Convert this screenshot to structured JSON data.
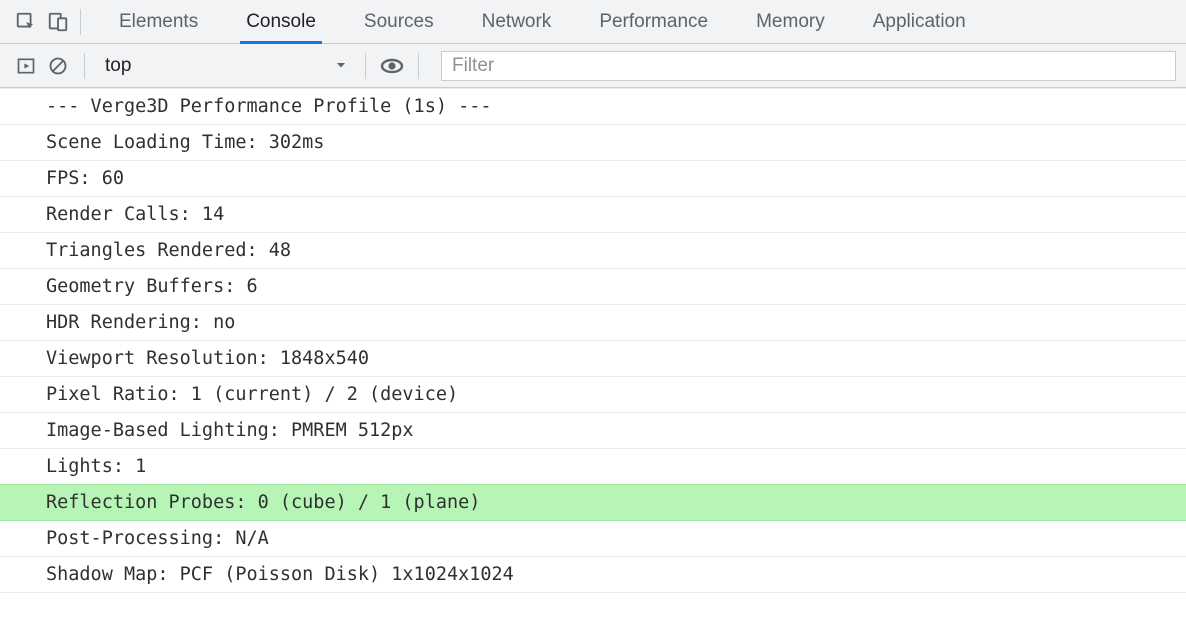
{
  "colors": {
    "tab_bg": "#f1f3f4",
    "border": "#c9cccf",
    "text_muted": "#5f6368",
    "text_strong": "#202124",
    "accent": "#1a73e8",
    "row_border": "#e8eaed",
    "highlight_bg": "#b7f5b7",
    "highlight_border": "#a0e8a0",
    "log_text": "#303030",
    "placeholder": "#8e9195"
  },
  "tabs": {
    "items": [
      "Elements",
      "Console",
      "Sources",
      "Network",
      "Performance",
      "Memory",
      "Application"
    ],
    "active_index": 1
  },
  "toolbar": {
    "context_label": "top",
    "filter_placeholder": "Filter"
  },
  "log": {
    "highlight_index": 11,
    "lines": [
      "--- Verge3D Performance Profile (1s) ---",
      "Scene Loading Time: 302ms",
      "FPS: 60",
      "Render Calls: 14",
      "Triangles Rendered: 48",
      "Geometry Buffers: 6",
      "HDR Rendering: no",
      "Viewport Resolution: 1848x540",
      "Pixel Ratio: 1 (current) / 2 (device)",
      "Image-Based Lighting: PMREM 512px",
      "Lights: 1",
      "Reflection Probes: 0 (cube) / 1 (plane)",
      "Post-Processing: N/A",
      "Shadow Map: PCF (Poisson Disk) 1x1024x1024"
    ]
  }
}
